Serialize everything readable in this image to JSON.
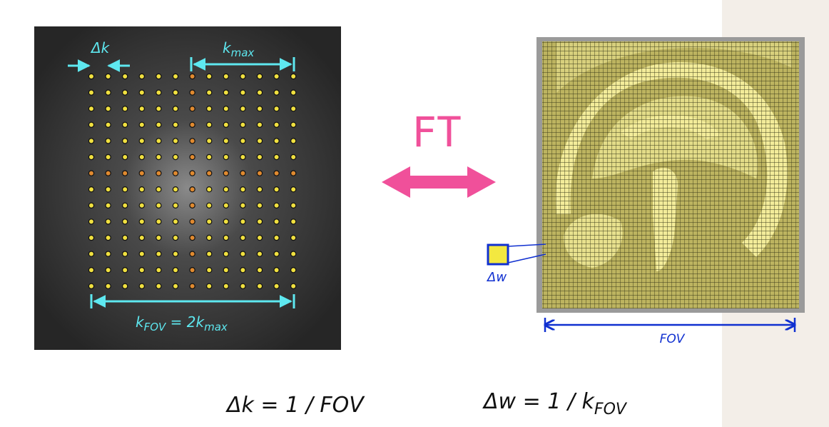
{
  "kspace": {
    "delta_k": "Δk",
    "kmax": [
      "k",
      "max"
    ],
    "kfov": [
      "k",
      "FOV",
      " = 2k",
      "max"
    ]
  },
  "transform": "FT",
  "image": {
    "delta_w": "Δw",
    "fov": "FOV"
  },
  "equations": {
    "first": "Δk = 1 / FOV",
    "second": [
      "Δw = 1 / k",
      "FOV"
    ]
  }
}
